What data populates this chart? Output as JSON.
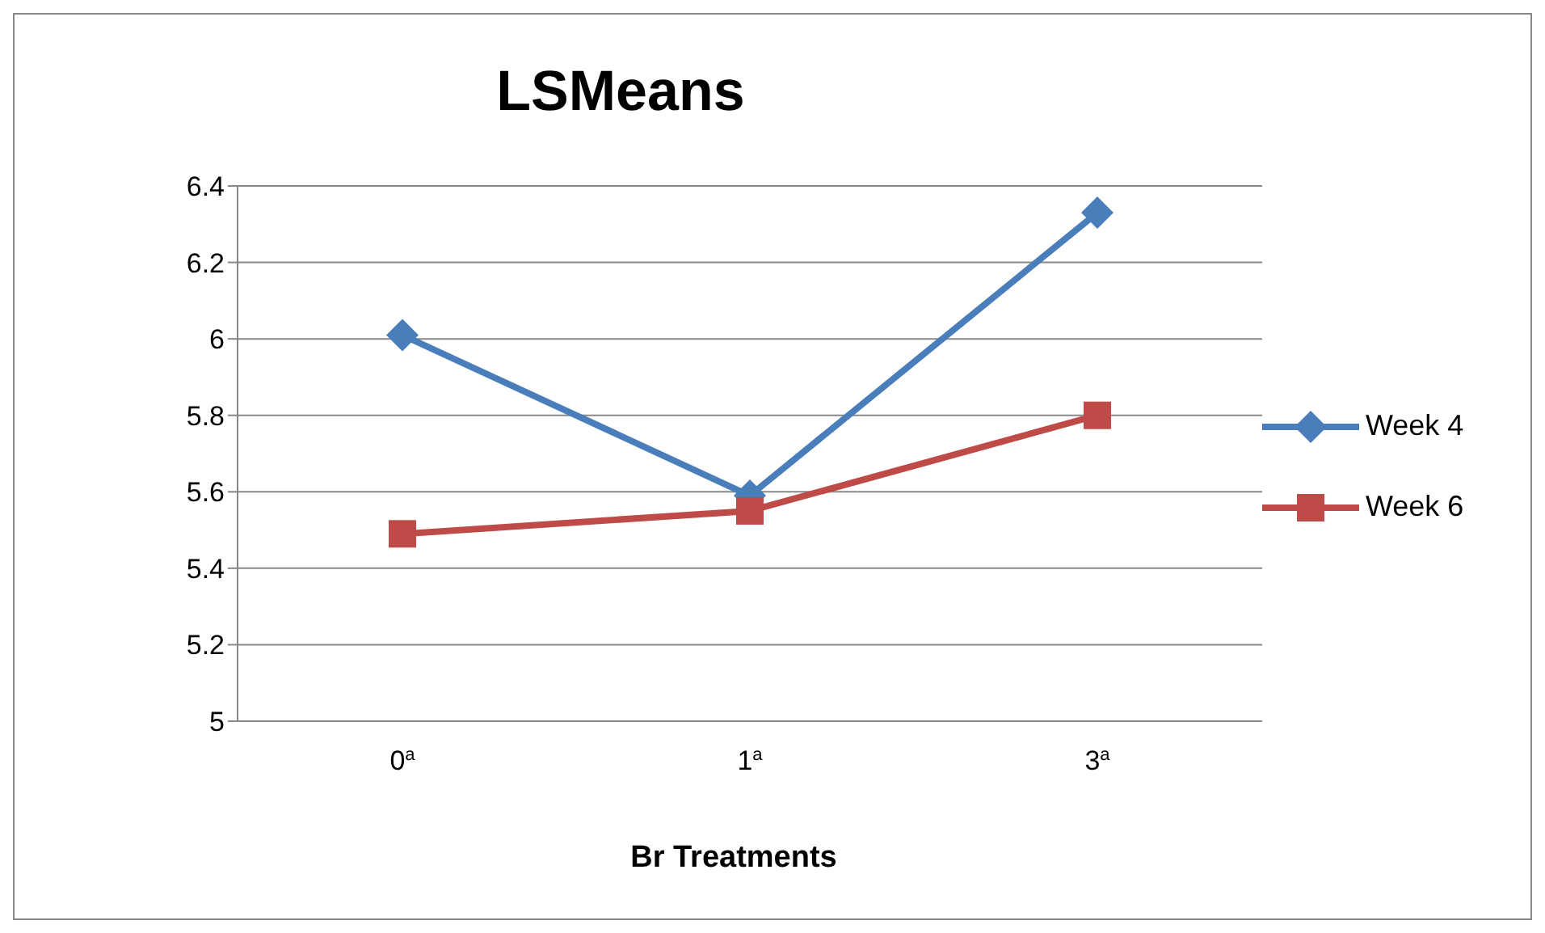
{
  "chart_data": {
    "type": "line",
    "title": "LSMeans",
    "xlabel": "Br Treatments",
    "categories": [
      "0$^{a}$",
      "1$^{a}$",
      "3$^{a}$"
    ],
    "series": [
      {
        "name": "Week 4",
        "color": "#4a7ebb",
        "marker": "diamond",
        "values": [
          6.01,
          5.59,
          6.33
        ]
      },
      {
        "name": "Week 6",
        "color": "#be4b48",
        "marker": "square",
        "values": [
          5.49,
          5.55,
          5.8
        ]
      }
    ],
    "ylim": [
      5,
      6.4
    ],
    "yticks": [
      5,
      5.2,
      5.4,
      5.6,
      5.8,
      6,
      6.2,
      6.4
    ],
    "grid": "y",
    "legend": "right"
  }
}
